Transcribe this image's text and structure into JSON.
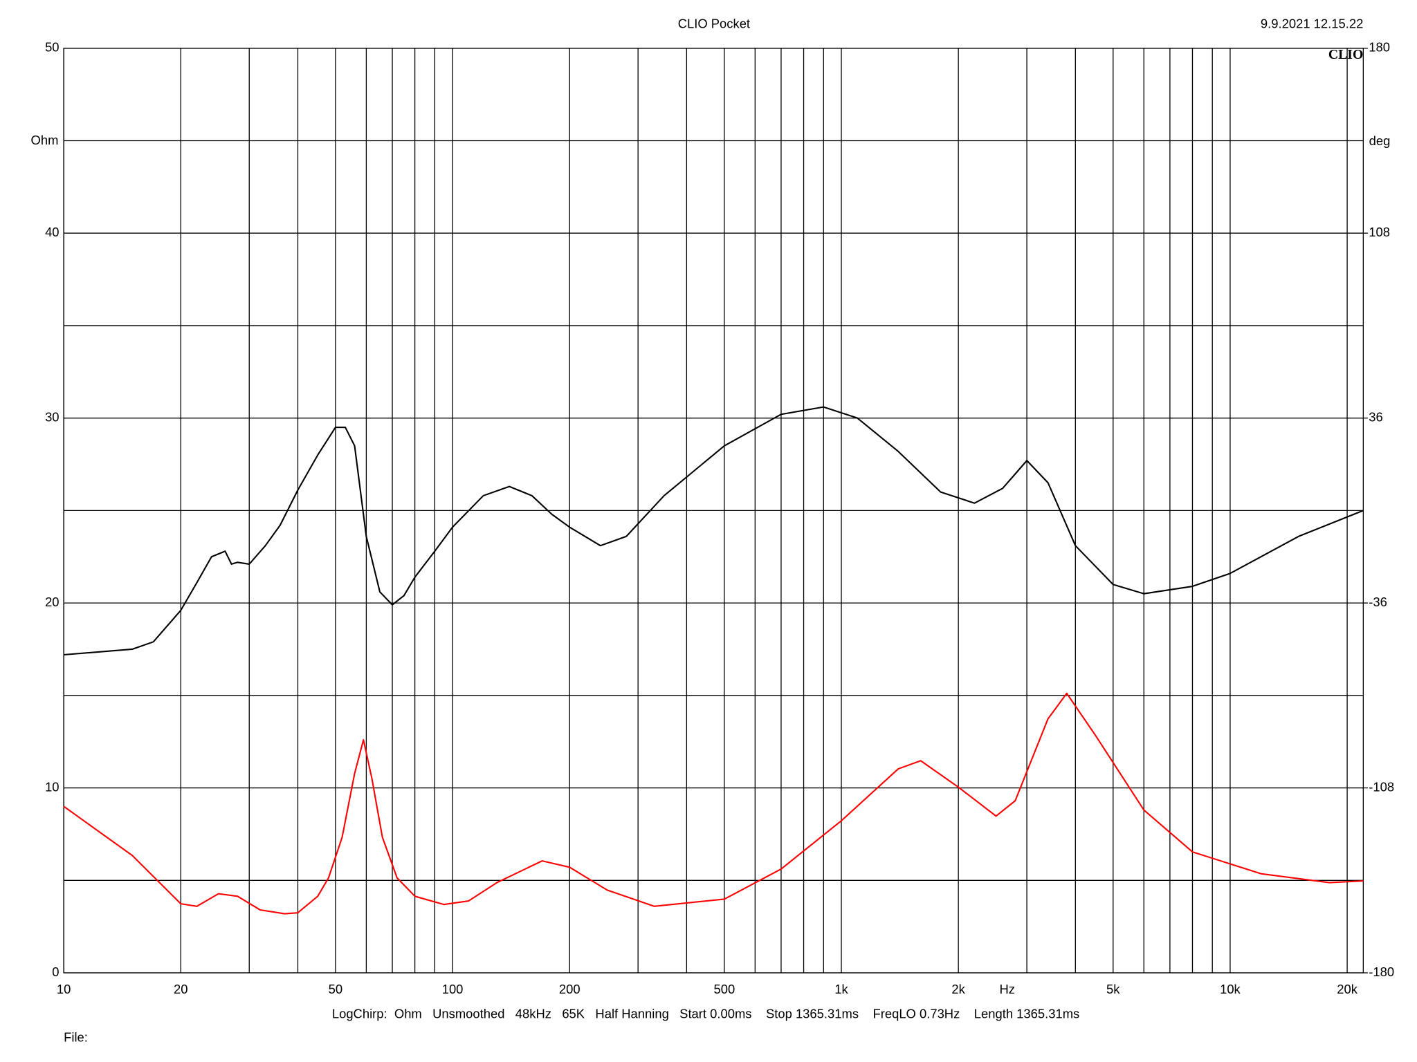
{
  "chart_data": {
    "type": "line",
    "title": "CLIO Pocket",
    "timestamp": "9.9.2021 12.15.22",
    "logo": "CLIO",
    "xlabel": "Hz",
    "ylabel": "Ohm",
    "y2label": "deg",
    "footer": "LogChirp:  Ohm   Unsmoothed   48kHz   65K   Half Hanning   Start 0.00ms    Stop 1365.31ms    FreqLO 0.73Hz    Length 1365.31ms",
    "file_label": "File:",
    "xscale": "log",
    "grid": true,
    "xlim": [
      10,
      22000
    ],
    "xticks": [
      10,
      20,
      50,
      100,
      200,
      500,
      {
        "value": 1000,
        "label": "1k"
      },
      {
        "value": 2000,
        "label": "2k"
      },
      {
        "value": 5000,
        "label": "5k"
      },
      {
        "value": 10000,
        "label": "10k"
      },
      {
        "value": 20000,
        "label": "20k"
      }
    ],
    "xminor_ticks": [
      30,
      40,
      60,
      70,
      80,
      90,
      300,
      400,
      600,
      700,
      800,
      900,
      3000,
      4000,
      6000,
      7000,
      8000,
      9000
    ],
    "ylim": [
      0,
      50
    ],
    "yticks": [
      0,
      10,
      20,
      30,
      40,
      50
    ],
    "yminor_ticks": [
      5,
      15,
      25,
      35,
      45
    ],
    "y2lim": [
      -180,
      180
    ],
    "y2ticks": [
      -180,
      -108,
      -36,
      36,
      108,
      180
    ],
    "series": [
      {
        "name": "Ohm",
        "color": "#000000",
        "x": [
          10,
          15,
          17,
          20,
          22,
          24,
          26,
          27,
          28,
          30,
          33,
          36,
          40,
          45,
          50,
          53,
          56,
          60,
          65,
          70,
          75,
          80,
          90,
          100,
          120,
          140,
          160,
          180,
          200,
          240,
          280,
          350,
          500,
          700,
          900,
          1100,
          1400,
          1800,
          2200,
          2600,
          3000,
          3400,
          4000,
          5000,
          6000,
          8000,
          10000,
          15000,
          22000
        ],
        "values": [
          17.2,
          17.5,
          17.9,
          19.6,
          21.1,
          22.5,
          22.8,
          22.1,
          22.2,
          22.1,
          23.1,
          24.2,
          26.1,
          28.0,
          29.5,
          29.5,
          28.5,
          23.6,
          20.6,
          19.9,
          20.4,
          21.4,
          22.8,
          24.1,
          25.8,
          26.3,
          25.8,
          24.8,
          24.1,
          23.1,
          23.6,
          25.8,
          28.5,
          30.2,
          30.6,
          30.0,
          28.2,
          26.0,
          25.4,
          26.2,
          27.7,
          26.5,
          23.1,
          21.0,
          20.5,
          20.9,
          21.6,
          23.6,
          25.0
        ]
      },
      {
        "name": "deg",
        "color": "#ff0000",
        "axis": "y2",
        "x": [
          10,
          15,
          20,
          22,
          25,
          28,
          32,
          37,
          40,
          45,
          48,
          52,
          56,
          59,
          62,
          66,
          72,
          80,
          95,
          110,
          130,
          170,
          200,
          250,
          330,
          500,
          700,
          1000,
          1400,
          1600,
          2000,
          2500,
          2800,
          3400,
          3800,
          4500,
          6000,
          8000,
          12000,
          18000,
          22000
        ],
        "values": [
          -115.2,
          -134.3,
          -153.1,
          -154.1,
          -149.2,
          -150.2,
          -155.5,
          -157,
          -156.6,
          -150.2,
          -143,
          -127.2,
          -102.4,
          -89.3,
          -104.2,
          -127.2,
          -143,
          -150.2,
          -153.4,
          -152,
          -144.9,
          -136.4,
          -138.9,
          -147.8,
          -154.1,
          -151.3,
          -139.6,
          -120.8,
          -100.6,
          -97.4,
          -107.7,
          -119,
          -113,
          -81.1,
          -71.2,
          -87.5,
          -116.6,
          -132.9,
          -141.4,
          -144.9,
          -144.2
        ]
      }
    ]
  }
}
